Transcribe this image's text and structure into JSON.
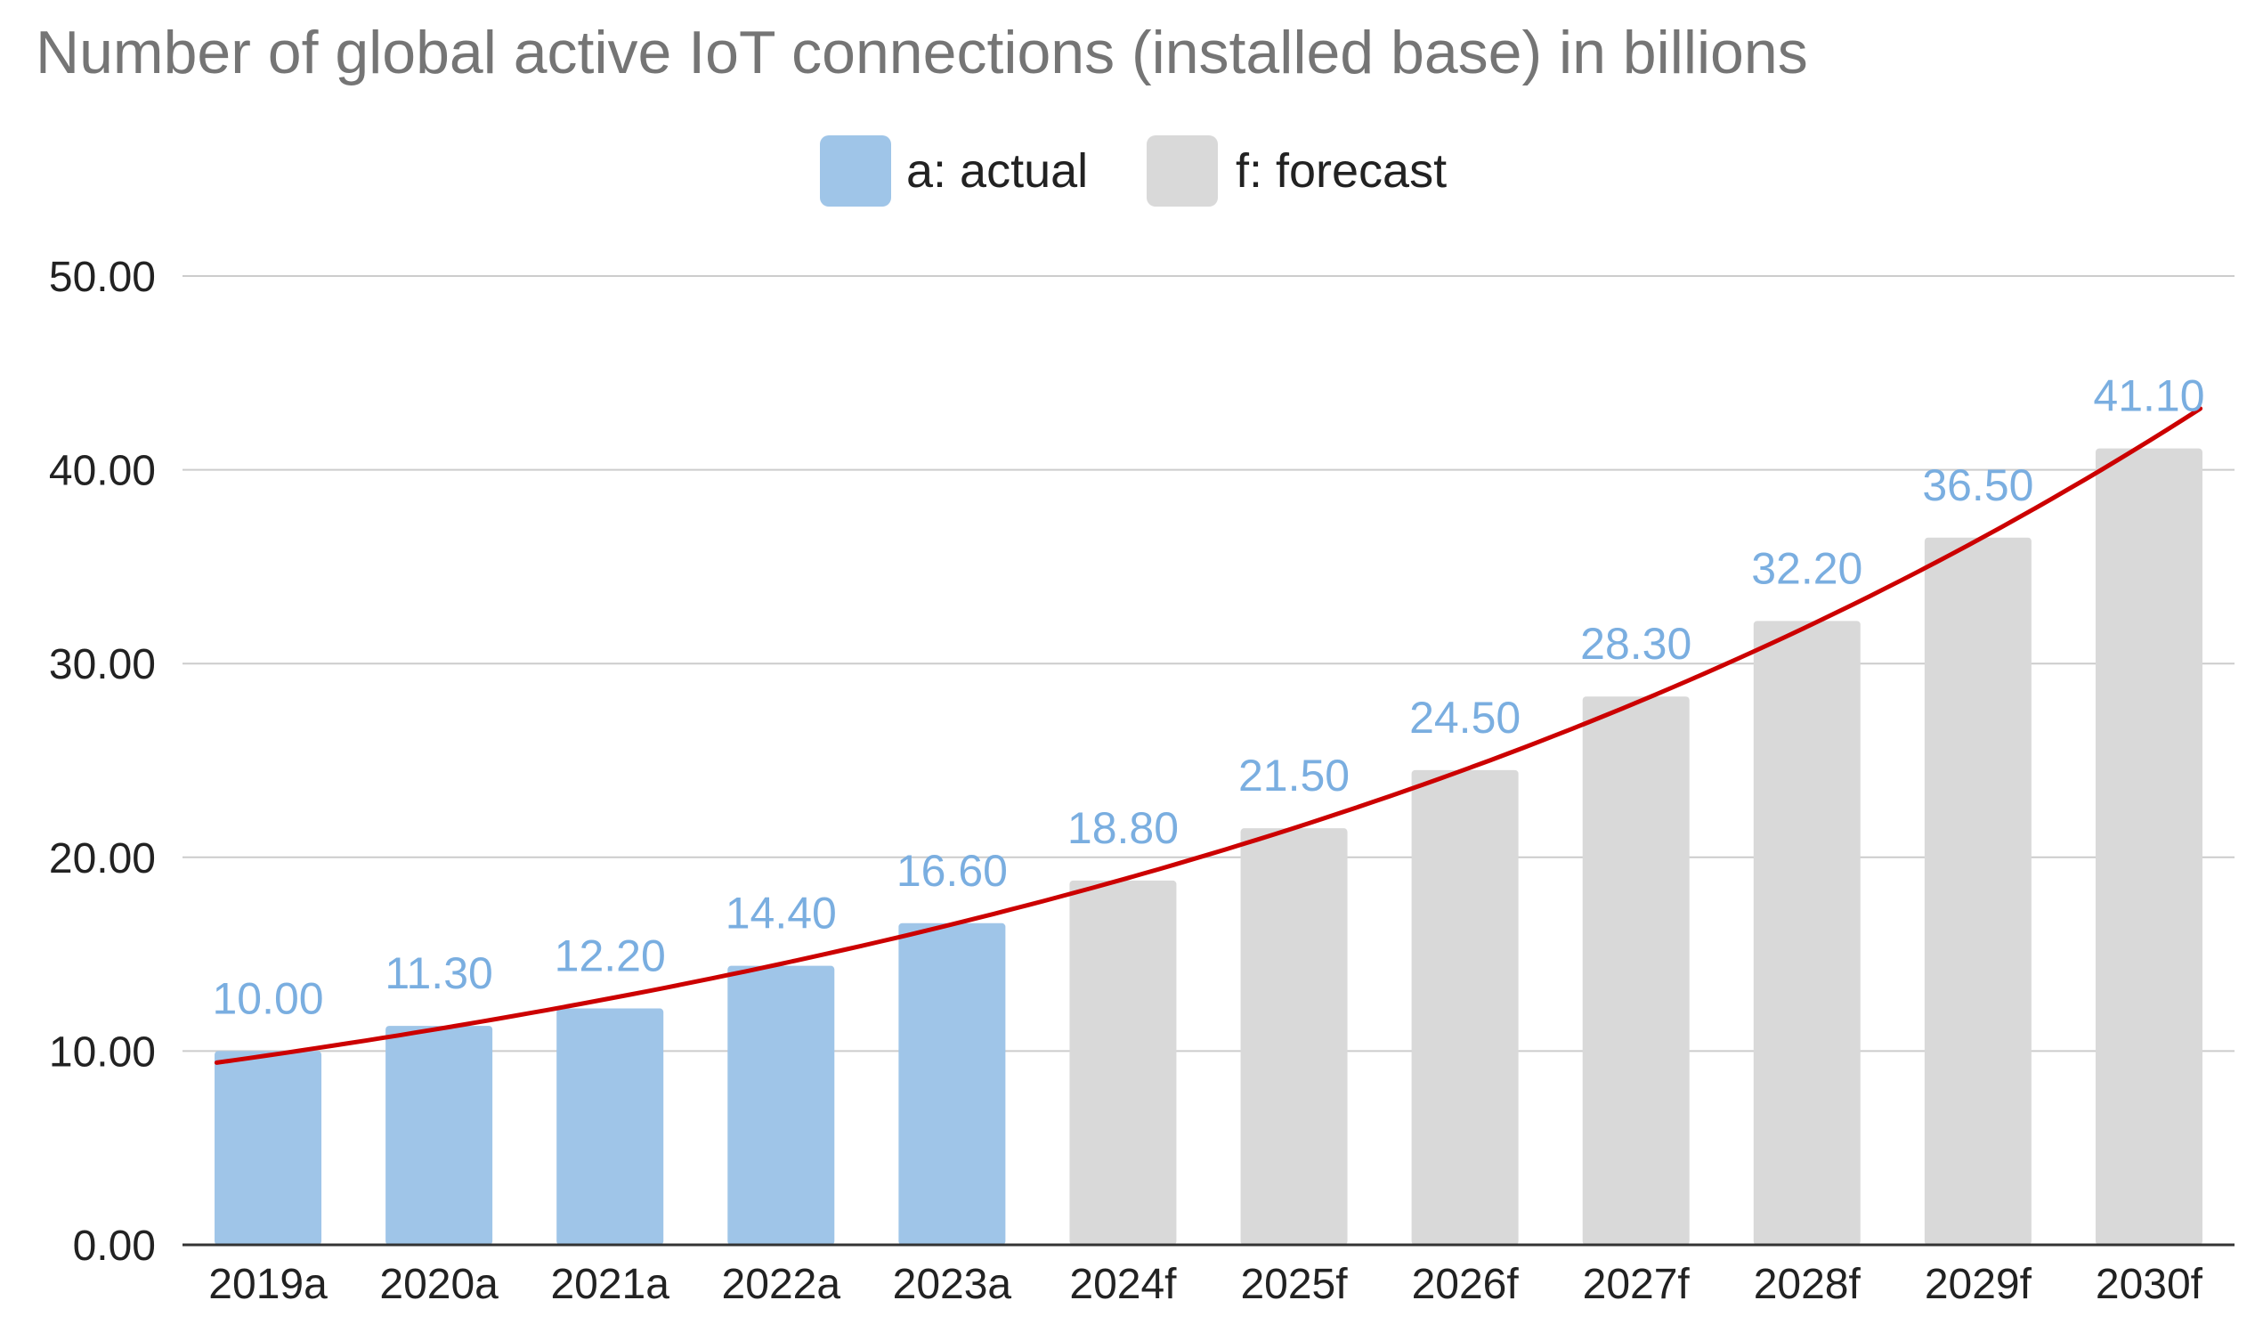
{
  "chart_data": {
    "type": "bar",
    "title": "Number of global active IoT connections (installed base) in billions",
    "categories": [
      "2019a",
      "2020a",
      "2021a",
      "2022a",
      "2023a",
      "2024f",
      "2025f",
      "2026f",
      "2027f",
      "2028f",
      "2029f",
      "2030f"
    ],
    "values": [
      10.0,
      11.3,
      12.2,
      14.4,
      16.6,
      18.8,
      21.5,
      24.5,
      28.3,
      32.2,
      36.5,
      41.1
    ],
    "data_labels": [
      "10.00",
      "11.30",
      "12.20",
      "14.40",
      "16.60",
      "18.80",
      "21.50",
      "24.50",
      "28.30",
      "32.20",
      "36.50",
      "41.10"
    ],
    "bar_kind": [
      "actual",
      "actual",
      "actual",
      "actual",
      "actual",
      "forecast",
      "forecast",
      "forecast",
      "forecast",
      "forecast",
      "forecast",
      "forecast"
    ],
    "legend": [
      {
        "key": "actual",
        "label": "a: actual",
        "color": "#9fc5e8"
      },
      {
        "key": "forecast",
        "label": "f: forecast",
        "color": "#d9d9d9"
      }
    ],
    "legend_position": "top-center",
    "ylim": [
      0,
      50
    ],
    "yticks": [
      0,
      10,
      20,
      30,
      40,
      50
    ],
    "ytick_labels": [
      "0.00",
      "10.00",
      "20.00",
      "30.00",
      "40.00",
      "50.00"
    ],
    "xlabel": "",
    "ylabel": "",
    "grid": true,
    "trendline": {
      "type": "exponential",
      "color": "#cc0000",
      "x_start": -0.3,
      "x_end": 11.3
    },
    "colors": {
      "actual": "#9fc5e8",
      "forecast": "#d9d9d9",
      "data_label": "#7aaee0",
      "title": "#757575",
      "axis_text": "#222222",
      "gridline": "#cccccc",
      "axis_line": "#333333",
      "trendline": "#cc0000"
    }
  }
}
